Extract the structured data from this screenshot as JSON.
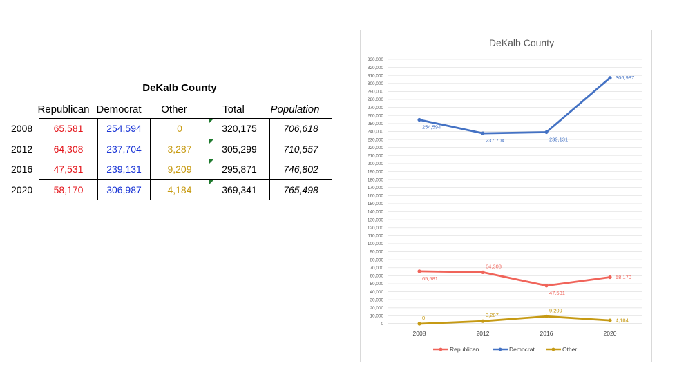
{
  "table": {
    "title": "DeKalb County",
    "headers": [
      "Republican",
      "Democrat",
      "Other",
      "Total",
      "Population"
    ],
    "rows": [
      {
        "year": "2008",
        "republican": "65,581",
        "democrat": "254,594",
        "other": "0",
        "total": "320,175",
        "population": "706,618"
      },
      {
        "year": "2012",
        "republican": "64,308",
        "democrat": "237,704",
        "other": "3,287",
        "total": "305,299",
        "population": "710,557"
      },
      {
        "year": "2016",
        "republican": "47,531",
        "democrat": "239,131",
        "other": "9,209",
        "total": "295,871",
        "population": "746,802"
      },
      {
        "year": "2020",
        "republican": "58,170",
        "democrat": "306,987",
        "other": "4,184",
        "total": "369,341",
        "population": "765,498"
      }
    ]
  },
  "chart_data": {
    "type": "line",
    "title": "DeKalb County",
    "categories": [
      "2008",
      "2012",
      "2016",
      "2020"
    ],
    "ylim": [
      0,
      330000
    ],
    "ytick_step": 10000,
    "grid": true,
    "legend": "bottom",
    "series": [
      {
        "name": "Republican",
        "color": "#f0645a",
        "values": [
          65581,
          64308,
          47531,
          58170
        ],
        "labels": [
          "65,581",
          "64,308",
          "47,531",
          "58,170"
        ]
      },
      {
        "name": "Democrat",
        "color": "#4472c4",
        "values": [
          254594,
          237704,
          239131,
          306987
        ],
        "labels": [
          "254,594",
          "237,704",
          "239,131",
          "306,987"
        ]
      },
      {
        "name": "Other",
        "color": "#c69a14",
        "values": [
          0,
          3287,
          9209,
          4184
        ],
        "labels": [
          "0",
          "3,287",
          "9,209",
          "4,184"
        ]
      }
    ]
  }
}
